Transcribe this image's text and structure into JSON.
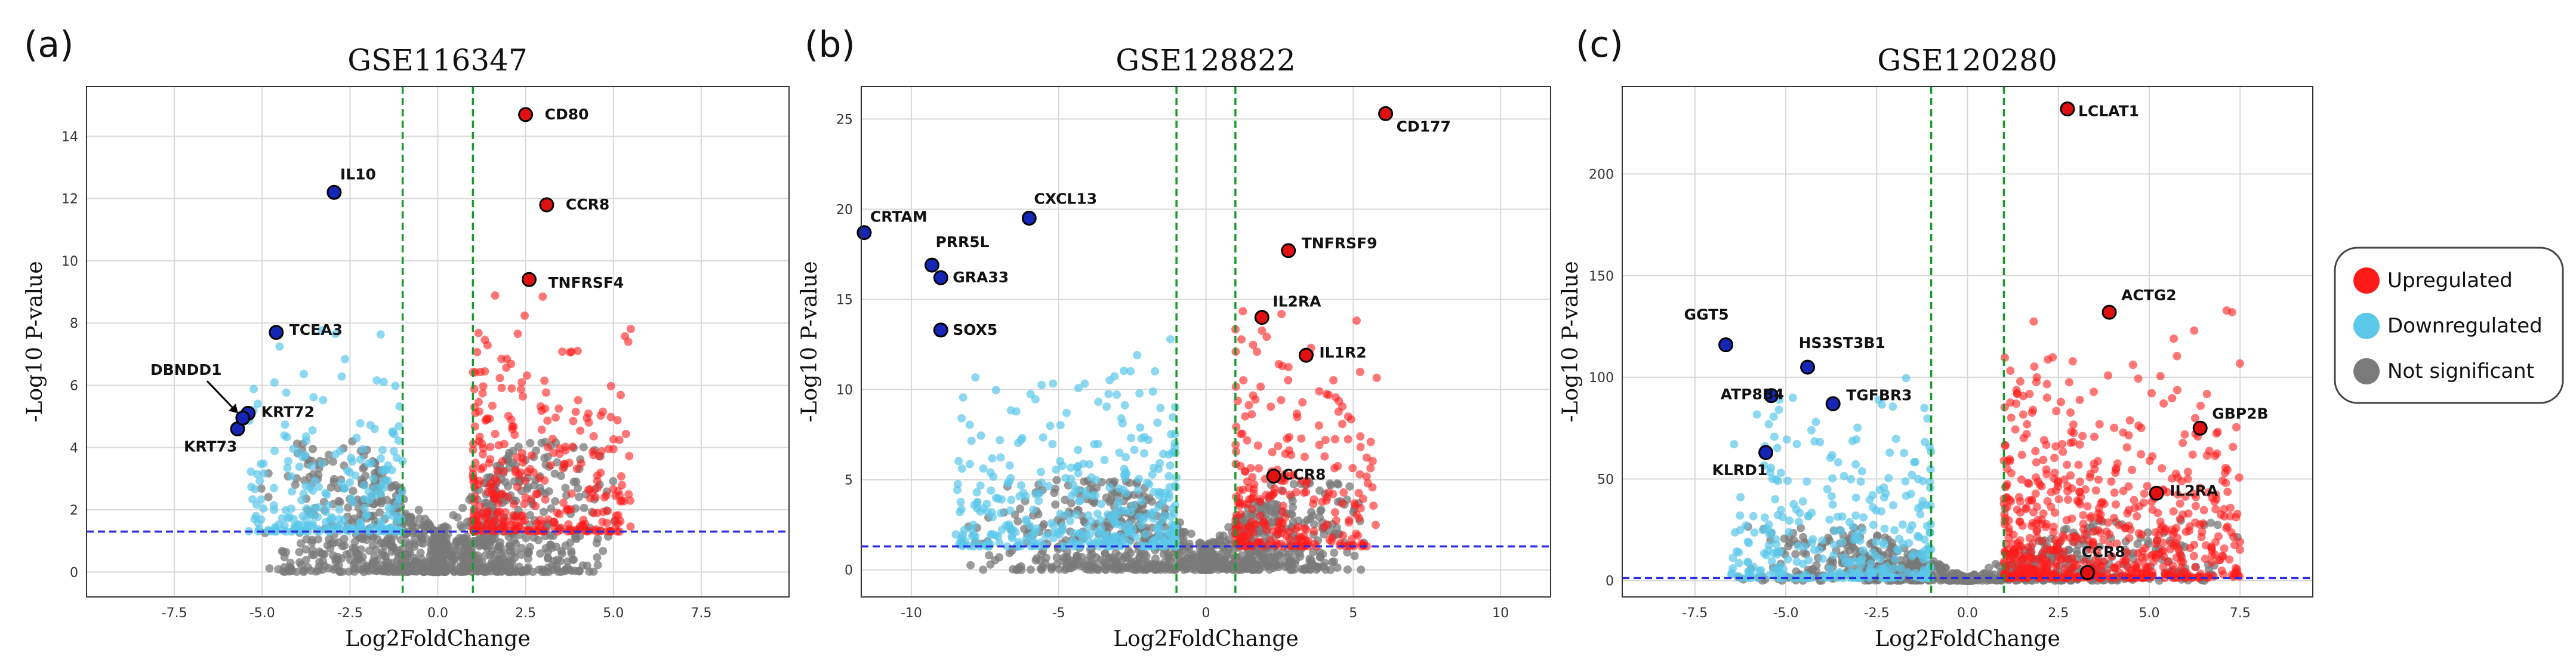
{
  "chart_data": [
    {
      "type": "scatter",
      "panel_label": "(a)",
      "title": "GSE116347",
      "xlabel": "Log2FoldChange",
      "ylabel": "-Log10 P-value",
      "xlim": [
        -10,
        10
      ],
      "ylim": [
        -0.8,
        15.6
      ],
      "xticks": [
        -7.5,
        -5.0,
        -2.5,
        0.0,
        2.5,
        5.0,
        7.5
      ],
      "xtick_labels": [
        "-7.5",
        "-5.0",
        "-2.5",
        "0.0",
        "2.5",
        "5.0",
        "7.5"
      ],
      "yticks": [
        0,
        2,
        4,
        6,
        8,
        10,
        12,
        14
      ],
      "ytick_labels": [
        "0",
        "2",
        "4",
        "6",
        "8",
        "10",
        "12",
        "14"
      ],
      "fc_thresholds": [
        -1,
        1
      ],
      "p_threshold": 1.3,
      "grid": true,
      "cloud": {
        "left_extent": 5.4,
        "right_extent": 5.5,
        "max_y": 4.2,
        "up_count": 320,
        "down_count": 230,
        "gray_count": 1100
      },
      "labeled_genes": [
        {
          "gene": "CD80",
          "x": 2.5,
          "y": 14.7,
          "class": "up"
        },
        {
          "gene": "CCR8",
          "x": 3.1,
          "y": 11.8,
          "class": "up"
        },
        {
          "gene": "TNFRSF4",
          "x": 2.6,
          "y": 9.4,
          "class": "up"
        },
        {
          "gene": "IL10",
          "x": -2.95,
          "y": 12.2,
          "class": "down"
        },
        {
          "gene": "TCEA3",
          "x": -4.6,
          "y": 7.7,
          "class": "down"
        },
        {
          "gene": "KRT72",
          "x": -5.4,
          "y": 5.1,
          "class": "down"
        },
        {
          "gene": "KRT73",
          "x": -5.7,
          "y": 4.6,
          "class": "down"
        },
        {
          "gene": "DBNDD1",
          "x": -5.55,
          "y": 4.95,
          "class": "down"
        }
      ]
    },
    {
      "type": "scatter",
      "panel_label": "(b)",
      "title": "GSE128822",
      "xlabel": "Log2FoldChange",
      "ylabel": "-Log10 P-value",
      "xlim": [
        -11.7,
        11.7
      ],
      "ylim": [
        -1.5,
        26.8
      ],
      "xticks": [
        -10,
        -5,
        0,
        5,
        10
      ],
      "xtick_labels": [
        "-10",
        "-5",
        "0",
        "5",
        "10"
      ],
      "yticks": [
        0,
        5,
        10,
        15,
        20,
        25
      ],
      "ytick_labels": [
        "0",
        "5",
        "10",
        "15",
        "20",
        "25"
      ],
      "fc_thresholds": [
        -1,
        1
      ],
      "p_threshold": 1.3,
      "grid": true,
      "cloud": {
        "left_extent": 8.5,
        "right_extent": 5.8,
        "max_y": 5.0,
        "up_count": 260,
        "down_count": 380,
        "gray_count": 1000
      },
      "labeled_genes": [
        {
          "gene": "CD177",
          "x": 6.1,
          "y": 25.3,
          "class": "up"
        },
        {
          "gene": "TNFRSF9",
          "x": 2.8,
          "y": 17.7,
          "class": "up"
        },
        {
          "gene": "IL2RA",
          "x": 1.9,
          "y": 14.0,
          "class": "up"
        },
        {
          "gene": "IL1R2",
          "x": 3.4,
          "y": 11.9,
          "class": "up"
        },
        {
          "gene": "CCR8",
          "x": 2.3,
          "y": 5.2,
          "class": "up"
        },
        {
          "gene": "CRTAM",
          "x": -11.6,
          "y": 18.7,
          "class": "down"
        },
        {
          "gene": "CXCL13",
          "x": -6.0,
          "y": 19.5,
          "class": "down"
        },
        {
          "gene": "PRR5L",
          "x": -9.3,
          "y": 16.9,
          "class": "down"
        },
        {
          "gene": "GRA33",
          "x": -9.0,
          "y": 16.2,
          "class": "down"
        },
        {
          "gene": "SOX5",
          "x": -9.0,
          "y": 13.3,
          "class": "down"
        }
      ]
    },
    {
      "type": "scatter",
      "panel_label": "(c)",
      "title": "GSE120280",
      "xlabel": "Log2FoldChange",
      "ylabel": "-Log10 P-value",
      "xlim": [
        -9.5,
        9.5
      ],
      "ylim": [
        -8,
        243
      ],
      "xticks": [
        -7.5,
        -5.0,
        -2.5,
        0.0,
        2.5,
        5.0,
        7.5
      ],
      "xtick_labels": [
        "-7.5",
        "-5.0",
        "-2.5",
        "0.0",
        "2.5",
        "5.0",
        "7.5"
      ],
      "yticks": [
        0,
        50,
        100,
        150,
        200
      ],
      "ytick_labels": [
        "0",
        "50",
        "100",
        "150",
        "200"
      ],
      "fc_thresholds": [
        -1,
        1
      ],
      "p_threshold": 1.3,
      "grid": true,
      "cloud": {
        "left_extent": 6.5,
        "right_extent": 7.5,
        "max_y": 30,
        "up_count": 650,
        "down_count": 320,
        "gray_count": 900
      },
      "labeled_genes": [
        {
          "gene": "LCLAT1",
          "x": 2.75,
          "y": 232,
          "class": "up"
        },
        {
          "gene": "ACTG2",
          "x": 3.9,
          "y": 132,
          "class": "up"
        },
        {
          "gene": "GBP2B",
          "x": 6.4,
          "y": 75,
          "class": "up"
        },
        {
          "gene": "IL2RA",
          "x": 5.2,
          "y": 43,
          "class": "up"
        },
        {
          "gene": "CCR8",
          "x": 3.3,
          "y": 4,
          "class": "up"
        },
        {
          "gene": "GGT5",
          "x": -6.65,
          "y": 116,
          "class": "down"
        },
        {
          "gene": "HS3ST3B1",
          "x": -4.4,
          "y": 105,
          "class": "down"
        },
        {
          "gene": "ATP8B4",
          "x": -5.4,
          "y": 91,
          "class": "down"
        },
        {
          "gene": "TGFBR3",
          "x": -3.7,
          "y": 87,
          "class": "down"
        },
        {
          "gene": "KLRD1",
          "x": -5.55,
          "y": 63,
          "class": "down"
        }
      ]
    }
  ],
  "legend": {
    "placement": "right",
    "entries": [
      {
        "label": "Upregulated",
        "color": "#ff1a1a"
      },
      {
        "label": "Downregulated",
        "color": "#5bc8ea"
      },
      {
        "label": "Not significant",
        "color": "#7a7a7a"
      }
    ]
  },
  "colors": {
    "up": "#ff1a1a",
    "down": "#5bc8ea",
    "ns": "#7a7a7a",
    "labeled_down": "#1525b5",
    "labeled_up": "#e01010",
    "fc_line": "#1a9a2a",
    "p_line": "#2a2ae0",
    "grid": "#d8d8d8"
  }
}
